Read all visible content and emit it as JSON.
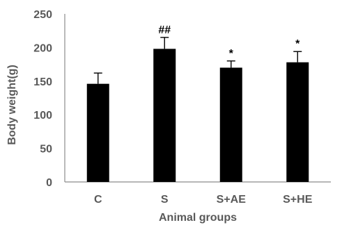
{
  "chart_data": {
    "type": "bar",
    "categories": [
      "C",
      "S",
      "S+AE",
      "S+HE"
    ],
    "values": [
      146,
      198,
      170,
      178
    ],
    "errors": [
      16,
      17,
      10,
      16
    ],
    "annotations": [
      "",
      "##",
      "*",
      "*"
    ],
    "xlabel": "Animal groups",
    "ylabel": "Body weight(g)",
    "ylim": [
      0,
      250
    ],
    "yticks": [
      "0",
      "50",
      "100",
      "150",
      "200",
      "250"
    ],
    "grid": false,
    "legend": "none",
    "bar_color": "#000000"
  }
}
